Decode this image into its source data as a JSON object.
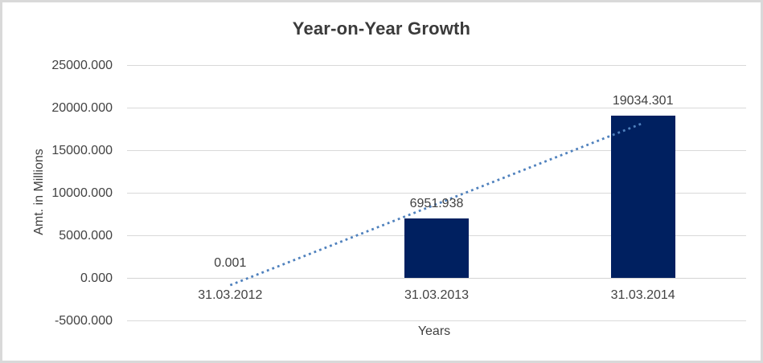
{
  "chart_data": {
    "type": "bar",
    "title": "Year-on-Year Growth",
    "xlabel": "Years",
    "ylabel": "Amt. in Millions",
    "categories": [
      "31.03.2012",
      "31.03.2013",
      "31.03.2014"
    ],
    "values": [
      0.001,
      6951.938,
      19034.301
    ],
    "data_labels": [
      "0.001",
      "6951.938",
      "19034.301"
    ],
    "yticks": [
      -5000,
      0,
      5000,
      10000,
      15000,
      20000,
      25000
    ],
    "ytick_labels": [
      "-5000.000",
      "0.000",
      "5000.000",
      "10000.000",
      "15000.000",
      "20000.000",
      "25000.000"
    ],
    "ylim": [
      -5000,
      25000
    ],
    "grid": true,
    "legend": "none",
    "trendline": {
      "type": "linear",
      "style": "dotted",
      "color": "#4f81bd"
    },
    "colors": {
      "bar": "#002060",
      "gridline": "#d9d9d9",
      "axis_line": "#d3d3d3",
      "text": "#424242",
      "title": "#3a3a3a",
      "frame_border": "#d9d9d9",
      "background": "#ffffff"
    }
  }
}
